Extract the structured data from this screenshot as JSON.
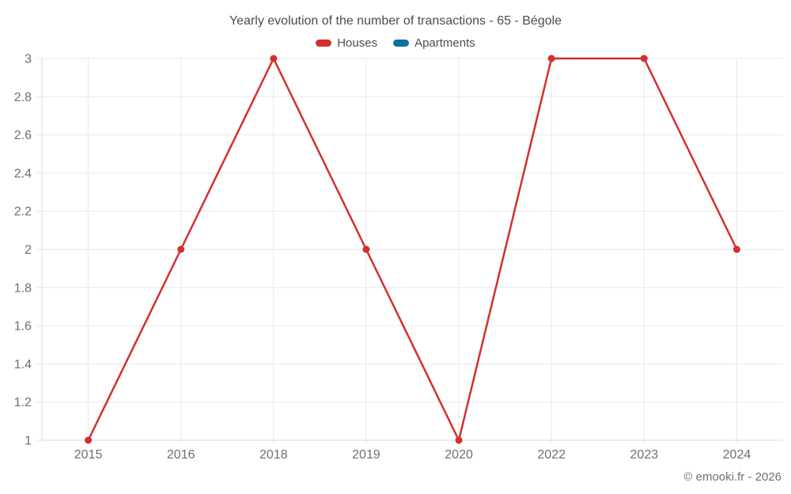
{
  "header": {
    "title": "Yearly evolution of the number of transactions - 65 - Bégole"
  },
  "legend": {
    "items": [
      {
        "label": "Houses",
        "color": "#d32f2f"
      },
      {
        "label": "Apartments",
        "color": "#0e6fa1"
      }
    ]
  },
  "footer": {
    "copyright": "© emooki.fr - 2026"
  },
  "theme": {
    "grid_color": "#e9e9e9",
    "axis_color": "#d8d8d8",
    "tick_label_color": "#6e6e6e",
    "title_color": "#4c4c4c"
  },
  "chart_data": {
    "type": "line",
    "title": "Yearly evolution of the number of transactions - 65 - Bégole",
    "categories": [
      "2015",
      "2016",
      "2018",
      "2019",
      "2020",
      "2022",
      "2023",
      "2024"
    ],
    "series": [
      {
        "name": "Houses",
        "color": "#d32f2f",
        "values": [
          1,
          2,
          3,
          2,
          1,
          3,
          3,
          2
        ]
      },
      {
        "name": "Apartments",
        "color": "#0e6fa1",
        "values": []
      }
    ],
    "xlabel": "",
    "ylabel": "",
    "ylim": [
      1,
      3
    ],
    "yticks": [
      "1",
      "1.2",
      "1.4",
      "1.6",
      "1.8",
      "2",
      "2.2",
      "2.4",
      "2.6",
      "2.8",
      "3"
    ],
    "grid": true,
    "legend_position": "top",
    "marker": "circle"
  }
}
